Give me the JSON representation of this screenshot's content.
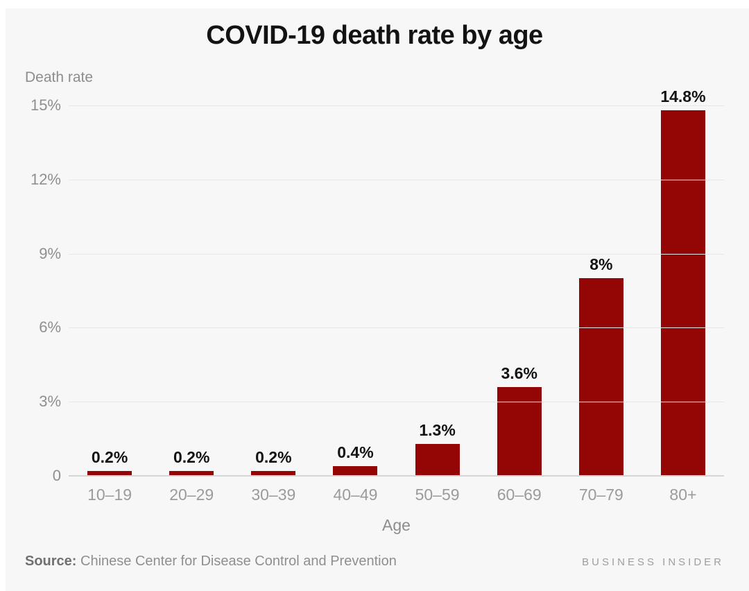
{
  "chart": {
    "title": "COVID-19 death rate by age",
    "y_axis_title": "Death rate",
    "x_axis_title": "Age"
  },
  "chart_data": {
    "type": "bar",
    "title": "COVID-19 death rate by age",
    "xlabel": "Age",
    "ylabel": "Death rate",
    "categories": [
      "10–19",
      "20–29",
      "30–39",
      "40–49",
      "50–59",
      "60–69",
      "70–79",
      "80+"
    ],
    "values": [
      0.2,
      0.2,
      0.2,
      0.4,
      1.3,
      3.6,
      8,
      14.8
    ],
    "value_labels": [
      "0.2%",
      "0.2%",
      "0.2%",
      "0.4%",
      "1.3%",
      "3.6%",
      "8%",
      "14.8%"
    ],
    "ylim": [
      0,
      15
    ],
    "yticks": [
      {
        "value": 15,
        "label": "15%"
      },
      {
        "value": 12,
        "label": "12%"
      },
      {
        "value": 9,
        "label": "9%"
      },
      {
        "value": 6,
        "label": "6%"
      },
      {
        "value": 3,
        "label": "3%"
      },
      {
        "value": 0,
        "label": "0"
      }
    ],
    "grid": true,
    "legend": false,
    "bar_color": "#940505"
  },
  "footer": {
    "source_label": "Source:",
    "source_text": " Chinese Center for Disease Control and Prevention",
    "brand": "BUSINESS INSIDER"
  },
  "colors": {
    "background": "#f7f7f7",
    "bar": "#940505",
    "gridline": "#e6e6e6",
    "baseline": "#d6d6d6",
    "title_text": "#131313",
    "axis_text": "#8f8f8f"
  }
}
